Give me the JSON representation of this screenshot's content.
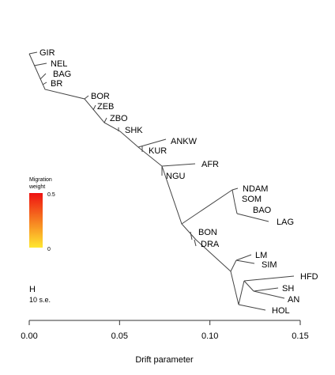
{
  "chart_data": {
    "type": "tree",
    "xlabel": "Drift parameter",
    "x_ticks": [
      {
        "value": 0.0,
        "label": "0.00"
      },
      {
        "value": 0.05,
        "label": "0.05"
      },
      {
        "value": 0.1,
        "label": "0.10"
      },
      {
        "value": 0.15,
        "label": "0.15"
      }
    ],
    "xlim": [
      0.0,
      0.15
    ],
    "leaves": [
      {
        "name": "GIR",
        "drift": 0.0
      },
      {
        "name": "NEL",
        "drift": 0.006
      },
      {
        "name": "BAG",
        "drift": 0.007
      },
      {
        "name": "BR",
        "drift": 0.007
      },
      {
        "name": "BOR",
        "drift": 0.033
      },
      {
        "name": "ZEB",
        "drift": 0.038
      },
      {
        "name": "ZBO",
        "drift": 0.043
      },
      {
        "name": "SHK",
        "drift": 0.05
      },
      {
        "name": "ANKW",
        "drift": 0.075
      },
      {
        "name": "KUR",
        "drift": 0.063
      },
      {
        "name": "AFR",
        "drift": 0.093
      },
      {
        "name": "NGU",
        "drift": 0.074
      },
      {
        "name": "NDAM",
        "drift": 0.119
      },
      {
        "name": "SOM",
        "drift": 0.117
      },
      {
        "name": "BAO",
        "drift": 0.125
      },
      {
        "name": "LAG",
        "drift": 0.134
      },
      {
        "name": "BON",
        "drift": 0.092
      },
      {
        "name": "DRA",
        "drift": 0.093
      },
      {
        "name": "LM",
        "drift": 0.125
      },
      {
        "name": "SIM",
        "drift": 0.125
      },
      {
        "name": "HFD",
        "drift": 0.145
      },
      {
        "name": "SH",
        "drift": 0.143
      },
      {
        "name": "AN",
        "drift": 0.14
      },
      {
        "name": "HOL",
        "drift": 0.133
      }
    ],
    "legend": {
      "title_line1": "Migration",
      "title_line2": "weight",
      "max_label": "0.5",
      "min_label": "0",
      "color_top": "#ee1111",
      "color_bottom": "#ffe830"
    },
    "scale_bar": {
      "symbol": "H",
      "label": "10 s.e."
    }
  }
}
